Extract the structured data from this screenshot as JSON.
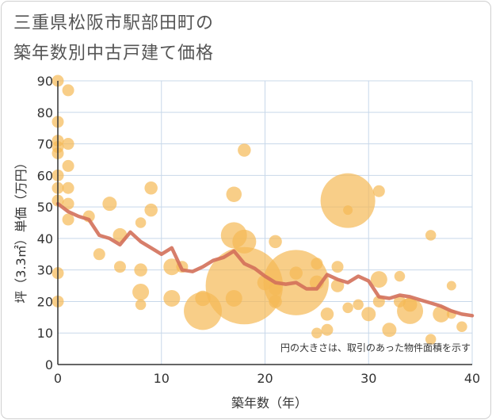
{
  "chart_data": {
    "type": "scatter",
    "title_line1": "三重県松阪市駅部田町の",
    "title_line2": "築年数別中古戸建て価格",
    "xlabel": "築年数（年）",
    "ylabel": "坪（3.3㎡）単価（万円）",
    "xlim": [
      0,
      40
    ],
    "ylim": [
      0,
      90
    ],
    "x_ticks": [
      0,
      10,
      20,
      30,
      40
    ],
    "y_ticks": [
      0,
      10,
      20,
      30,
      40,
      50,
      60,
      70,
      80,
      90
    ],
    "note": "円の大きさは、取引のあった物件面積を示す",
    "colors": {
      "bubble": "#f5b955",
      "line": "#d3705a",
      "grid": "#c8d8ea",
      "axis": "#333333"
    },
    "bubbles": [
      {
        "x": 0,
        "y": 90,
        "s": 1
      },
      {
        "x": 0,
        "y": 77,
        "s": 1
      },
      {
        "x": 0,
        "y": 71,
        "s": 1
      },
      {
        "x": 0,
        "y": 69,
        "s": 1
      },
      {
        "x": 0,
        "y": 67,
        "s": 1
      },
      {
        "x": 0,
        "y": 60,
        "s": 1
      },
      {
        "x": 0,
        "y": 56,
        "s": 1
      },
      {
        "x": 0,
        "y": 52,
        "s": 1
      },
      {
        "x": 0,
        "y": 29,
        "s": 1
      },
      {
        "x": 0,
        "y": 20,
        "s": 1
      },
      {
        "x": 1,
        "y": 87,
        "s": 1
      },
      {
        "x": 1,
        "y": 70,
        "s": 1
      },
      {
        "x": 1,
        "y": 63,
        "s": 1
      },
      {
        "x": 1,
        "y": 56,
        "s": 1
      },
      {
        "x": 1,
        "y": 51,
        "s": 1
      },
      {
        "x": 1,
        "y": 46,
        "s": 1
      },
      {
        "x": 3,
        "y": 47,
        "s": 1
      },
      {
        "x": 4,
        "y": 35,
        "s": 1
      },
      {
        "x": 5,
        "y": 51,
        "s": 1.2
      },
      {
        "x": 6,
        "y": 41,
        "s": 1.2
      },
      {
        "x": 6,
        "y": 31,
        "s": 1
      },
      {
        "x": 8,
        "y": 45,
        "s": 0.9
      },
      {
        "x": 8,
        "y": 30,
        "s": 1.1
      },
      {
        "x": 8,
        "y": 23,
        "s": 1.4
      },
      {
        "x": 8,
        "y": 19,
        "s": 0.9
      },
      {
        "x": 9,
        "y": 56,
        "s": 1.1
      },
      {
        "x": 9,
        "y": 49,
        "s": 1.1
      },
      {
        "x": 11,
        "y": 31,
        "s": 1.4
      },
      {
        "x": 11,
        "y": 21,
        "s": 1.4
      },
      {
        "x": 12,
        "y": 31,
        "s": 1
      },
      {
        "x": 14,
        "y": 21,
        "s": 1.3
      },
      {
        "x": 14,
        "y": 17,
        "s": 3.2
      },
      {
        "x": 17,
        "y": 54,
        "s": 1.3
      },
      {
        "x": 17,
        "y": 41,
        "s": 2.2
      },
      {
        "x": 17,
        "y": 21,
        "s": 1.4
      },
      {
        "x": 18,
        "y": 68,
        "s": 1.1
      },
      {
        "x": 18,
        "y": 39,
        "s": 2
      },
      {
        "x": 18,
        "y": 25,
        "s": 6.5
      },
      {
        "x": 20,
        "y": 26,
        "s": 1.3
      },
      {
        "x": 21,
        "y": 39,
        "s": 1.1
      },
      {
        "x": 21,
        "y": 24,
        "s": 1.1
      },
      {
        "x": 21,
        "y": 20,
        "s": 1.1
      },
      {
        "x": 23,
        "y": 29,
        "s": 1.1
      },
      {
        "x": 23,
        "y": 26,
        "s": 5.5
      },
      {
        "x": 25,
        "y": 32,
        "s": 1
      },
      {
        "x": 25,
        "y": 26,
        "s": 1.2
      },
      {
        "x": 25,
        "y": 10,
        "s": 0.9
      },
      {
        "x": 26,
        "y": 16,
        "s": 1.1
      },
      {
        "x": 26,
        "y": 11,
        "s": 1
      },
      {
        "x": 27,
        "y": 31,
        "s": 1
      },
      {
        "x": 27,
        "y": 25,
        "s": 1.1
      },
      {
        "x": 28,
        "y": 52,
        "s": 4.6
      },
      {
        "x": 28,
        "y": 49,
        "s": 0.8
      },
      {
        "x": 28,
        "y": 18,
        "s": 0.9
      },
      {
        "x": 29,
        "y": 19,
        "s": 0.9
      },
      {
        "x": 30,
        "y": 16,
        "s": 1.2
      },
      {
        "x": 31,
        "y": 55,
        "s": 1
      },
      {
        "x": 31,
        "y": 27,
        "s": 1.4
      },
      {
        "x": 31,
        "y": 20,
        "s": 1
      },
      {
        "x": 32,
        "y": 11,
        "s": 1.2
      },
      {
        "x": 33,
        "y": 28,
        "s": 0.9
      },
      {
        "x": 33,
        "y": 20,
        "s": 1
      },
      {
        "x": 34,
        "y": 19,
        "s": 1.2
      },
      {
        "x": 34,
        "y": 17,
        "s": 2.2
      },
      {
        "x": 36,
        "y": 41,
        "s": 0.9
      },
      {
        "x": 36,
        "y": 8,
        "s": 0.9
      },
      {
        "x": 37,
        "y": 16,
        "s": 1.4
      },
      {
        "x": 38,
        "y": 25,
        "s": 0.8
      },
      {
        "x": 38,
        "y": 16,
        "s": 0.8
      },
      {
        "x": 39,
        "y": 12,
        "s": 0.9
      }
    ],
    "trend": {
      "x": [
        0,
        1,
        2,
        3,
        4,
        5,
        6,
        7,
        8,
        9,
        10,
        11,
        12,
        13,
        14,
        15,
        16,
        17,
        18,
        19,
        20,
        21,
        22,
        23,
        24,
        25,
        26,
        27,
        28,
        29,
        30,
        31,
        32,
        33,
        34,
        35,
        36,
        37,
        38,
        39,
        40
      ],
      "y": [
        51,
        48.5,
        47,
        46,
        41,
        40,
        38,
        42,
        39,
        37,
        35,
        37,
        30,
        29.5,
        31,
        33,
        34,
        36,
        32,
        30.5,
        28,
        26,
        25.5,
        26,
        24,
        24,
        28.5,
        27,
        26,
        28,
        26.5,
        21.5,
        21,
        22,
        21.5,
        20.5,
        19.5,
        18.5,
        17,
        16,
        15.5
      ]
    }
  }
}
